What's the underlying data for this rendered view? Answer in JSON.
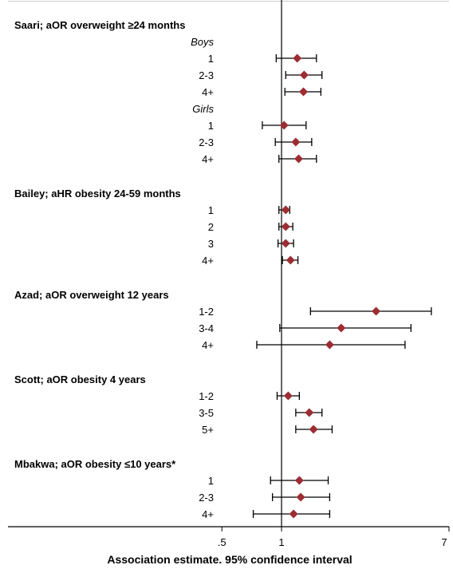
{
  "chart_data": {
    "type": "forest",
    "xlabel": "Association estimate. 95% confidence interval",
    "x_scale": "log",
    "xlim": [
      0.3,
      7
    ],
    "ticks": [
      {
        "value": 0.5,
        "label": ".5"
      },
      {
        "value": 1,
        "label": "1"
      },
      {
        "value": 7,
        "label": "7"
      }
    ],
    "reference_value": 1,
    "marker_color": "#9b2d33",
    "groups": [
      {
        "title": "Saari; aOR overweight ≥24 months",
        "subgroups": [
          {
            "name": "Boys",
            "rows": [
              {
                "label": "1",
                "est": 1.2,
                "lo": 0.94,
                "hi": 1.5
              },
              {
                "label": "2-3",
                "est": 1.3,
                "lo": 1.05,
                "hi": 1.6
              },
              {
                "label": "4+",
                "est": 1.29,
                "lo": 1.04,
                "hi": 1.58
              }
            ]
          },
          {
            "name": "Girls",
            "rows": [
              {
                "label": "1",
                "est": 1.03,
                "lo": 0.8,
                "hi": 1.33
              },
              {
                "label": "2-3",
                "est": 1.18,
                "lo": 0.93,
                "hi": 1.42
              },
              {
                "label": "4+",
                "est": 1.22,
                "lo": 0.97,
                "hi": 1.5
              }
            ]
          }
        ]
      },
      {
        "title": "Bailey; aHR obesity 24-59 months",
        "rows": [
          {
            "label": "1",
            "est": 1.05,
            "lo": 0.97,
            "hi": 1.1
          },
          {
            "label": "2",
            "est": 1.05,
            "lo": 0.97,
            "hi": 1.14
          },
          {
            "label": "3",
            "est": 1.05,
            "lo": 0.96,
            "hi": 1.15
          },
          {
            "label": "4+",
            "est": 1.11,
            "lo": 1.01,
            "hi": 1.21
          }
        ]
      },
      {
        "title": "Azad; aOR overweight 12 years",
        "rows": [
          {
            "label": "1-2",
            "est": 3.0,
            "lo": 1.4,
            "hi": 5.7
          },
          {
            "label": "3-4",
            "est": 2.0,
            "lo": 0.98,
            "hi": 4.5
          },
          {
            "label": "4+",
            "est": 1.75,
            "lo": 0.75,
            "hi": 4.2
          }
        ]
      },
      {
        "title": "Scott; aOR obesity 4 years",
        "rows": [
          {
            "label": "1-2",
            "est": 1.08,
            "lo": 0.95,
            "hi": 1.23
          },
          {
            "label": "3-5",
            "est": 1.38,
            "lo": 1.18,
            "hi": 1.6
          },
          {
            "label": "5+",
            "est": 1.45,
            "lo": 1.18,
            "hi": 1.8
          }
        ]
      },
      {
        "title": "Mbakwa; aOR obesity ≤10 years*",
        "rows": [
          {
            "label": "1",
            "est": 1.23,
            "lo": 0.88,
            "hi": 1.72
          },
          {
            "label": "2-3",
            "est": 1.25,
            "lo": 0.9,
            "hi": 1.75
          },
          {
            "label": "4+",
            "est": 1.15,
            "lo": 0.72,
            "hi": 1.75
          }
        ]
      }
    ]
  }
}
